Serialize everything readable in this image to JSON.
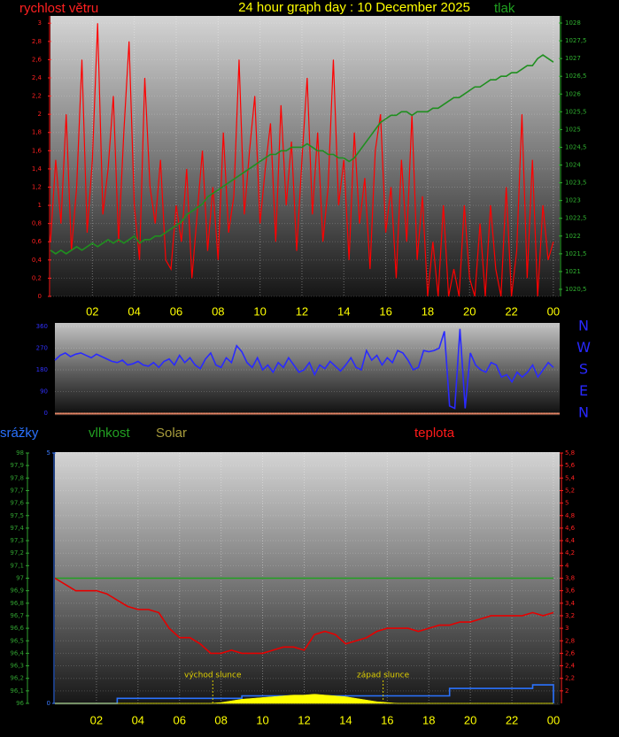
{
  "chart_data": [
    {
      "type": "line",
      "title": "24 hour graph day : 10 December 2025",
      "x": [
        0,
        0.25,
        0.5,
        0.75,
        1,
        1.25,
        1.5,
        1.75,
        2,
        2.25,
        2.5,
        2.75,
        3,
        3.25,
        3.5,
        3.75,
        4,
        4.25,
        4.5,
        4.75,
        5,
        5.25,
        5.5,
        5.75,
        6,
        6.25,
        6.5,
        6.75,
        7,
        7.25,
        7.5,
        7.75,
        8,
        8.25,
        8.5,
        8.75,
        9,
        9.25,
        9.5,
        9.75,
        10,
        10.25,
        10.5,
        10.75,
        11,
        11.25,
        11.5,
        11.75,
        12,
        12.25,
        12.5,
        12.75,
        13,
        13.25,
        13.5,
        13.75,
        14,
        14.25,
        14.5,
        14.75,
        15,
        15.25,
        15.5,
        15.75,
        16,
        16.25,
        16.5,
        16.75,
        17,
        17.25,
        17.5,
        17.75,
        18,
        18.25,
        18.5,
        18.75,
        19,
        19.25,
        19.5,
        19.75,
        20,
        20.25,
        20.5,
        20.75,
        21,
        21.25,
        21.5,
        21.75,
        22,
        22.25,
        22.5,
        22.75,
        23,
        23.25,
        23.5,
        23.75,
        24
      ],
      "series": [
        {
          "name": "rychlost větru",
          "color": "#ff0000",
          "values": [
            0.6,
            1.5,
            0.8,
            2.0,
            0.5,
            1.2,
            2.6,
            0.7,
            1.5,
            3.0,
            0.9,
            1.4,
            2.2,
            0.6,
            1.8,
            2.8,
            1.0,
            0.4,
            2.4,
            1.2,
            0.8,
            1.5,
            0.4,
            0.3,
            1.0,
            0.6,
            1.4,
            0.2,
            0.9,
            1.6,
            0.5,
            1.2,
            0.4,
            1.8,
            0.7,
            1.1,
            2.6,
            0.9,
            1.6,
            2.2,
            0.8,
            1.4,
            1.9,
            0.6,
            2.1,
            1.0,
            1.7,
            0.5,
            1.5,
            2.4,
            0.9,
            1.8,
            0.6,
            1.2,
            2.6,
            1.0,
            1.5,
            0.4,
            1.8,
            0.8,
            1.3,
            0.3,
            1.6,
            2.0,
            0.7,
            1.2,
            0.2,
            1.5,
            0.6,
            2.0,
            0.4,
            1.1,
            0,
            0.6,
            0,
            1.0,
            0,
            0.3,
            0,
            1.0,
            0.2,
            0,
            0.8,
            0,
            1.0,
            0.3,
            0,
            1.2,
            0,
            0.5,
            2.0,
            0.2,
            1.5,
            0,
            1.0,
            0.4,
            0.6
          ]
        },
        {
          "name": "tlak",
          "color": "#1f8f1f",
          "axis": "y2",
          "values": [
            1021.6,
            1021.5,
            1021.6,
            1021.5,
            1021.6,
            1021.7,
            1021.6,
            1021.7,
            1021.8,
            1021.7,
            1021.8,
            1021.9,
            1021.8,
            1021.9,
            1021.8,
            1021.9,
            1022.0,
            1021.8,
            1021.9,
            1021.9,
            1022.0,
            1022.0,
            1022.1,
            1022.2,
            1022.3,
            1022.4,
            1022.6,
            1022.7,
            1022.8,
            1022.9,
            1023.1,
            1023.2,
            1023.3,
            1023.4,
            1023.5,
            1023.6,
            1023.7,
            1023.8,
            1023.9,
            1024.0,
            1024.1,
            1024.2,
            1024.3,
            1024.3,
            1024.4,
            1024.4,
            1024.5,
            1024.5,
            1024.5,
            1024.6,
            1024.5,
            1024.4,
            1024.4,
            1024.3,
            1024.3,
            1024.2,
            1024.2,
            1024.1,
            1024.2,
            1024.4,
            1024.6,
            1024.8,
            1025.0,
            1025.2,
            1025.3,
            1025.4,
            1025.4,
            1025.5,
            1025.5,
            1025.4,
            1025.5,
            1025.5,
            1025.5,
            1025.6,
            1025.6,
            1025.7,
            1025.8,
            1025.9,
            1025.9,
            1026.0,
            1026.1,
            1026.2,
            1026.2,
            1026.3,
            1026.4,
            1026.4,
            1026.5,
            1026.5,
            1026.6,
            1026.6,
            1026.7,
            1026.8,
            1026.8,
            1027.0,
            1027.1,
            1027.0,
            1026.9
          ]
        }
      ],
      "xlim": [
        0,
        24.3
      ],
      "xticks": [
        {
          "value": 2,
          "label": "02"
        },
        {
          "value": 4,
          "label": "04"
        },
        {
          "value": 6,
          "label": "06"
        },
        {
          "value": 8,
          "label": "08"
        },
        10,
        12,
        14,
        16,
        18,
        20,
        22,
        {
          "value": 24,
          "label": "00"
        }
      ],
      "ylim": [
        0,
        3.08
      ],
      "yticks": [
        0,
        {
          "value": 0.2,
          "label": "0,2"
        },
        {
          "value": 0.4,
          "label": "0,4"
        },
        {
          "value": 0.6,
          "label": "0,6"
        },
        {
          "value": 0.8,
          "label": "0,8"
        },
        1,
        {
          "value": 1.2,
          "label": "1,2"
        },
        {
          "value": 1.4,
          "label": "1,4"
        },
        {
          "value": 1.6,
          "label": "1,6"
        },
        {
          "value": 1.8,
          "label": "1,8"
        },
        2,
        {
          "value": 2.2,
          "label": "2,2"
        },
        {
          "value": 2.4,
          "label": "2,4"
        },
        {
          "value": 2.6,
          "label": "2,6"
        },
        {
          "value": 2.8,
          "label": "2,8"
        },
        3
      ],
      "y2lim": [
        1020.3,
        1028.2
      ],
      "y2ticks": [
        {
          "value": 1020.5,
          "label": "1020,5"
        },
        1021,
        {
          "value": 1021.5,
          "label": "1021,5"
        },
        1022,
        {
          "value": 1022.5,
          "label": "1022,5"
        },
        1023,
        {
          "value": 1023.5,
          "label": "1023,5"
        },
        1024,
        {
          "value": 1024.5,
          "label": "1024,5"
        },
        1025,
        {
          "value": 1025.5,
          "label": "1025,5"
        },
        1026,
        {
          "value": 1026.5,
          "label": "1026,5"
        },
        1027,
        {
          "value": 1027.5,
          "label": "1027,5"
        },
        1028
      ],
      "grid": true
    },
    {
      "type": "line",
      "x": [
        0,
        0.25,
        0.5,
        0.75,
        1,
        1.25,
        1.5,
        1.75,
        2,
        2.25,
        2.5,
        2.75,
        3,
        3.25,
        3.5,
        3.75,
        4,
        4.25,
        4.5,
        4.75,
        5,
        5.25,
        5.5,
        5.75,
        6,
        6.25,
        6.5,
        6.75,
        7,
        7.25,
        7.5,
        7.75,
        8,
        8.25,
        8.5,
        8.75,
        9,
        9.25,
        9.5,
        9.75,
        10,
        10.25,
        10.5,
        10.75,
        11,
        11.25,
        11.5,
        11.75,
        12,
        12.25,
        12.5,
        12.75,
        13,
        13.25,
        13.5,
        13.75,
        14,
        14.25,
        14.5,
        14.75,
        15,
        15.25,
        15.5,
        15.75,
        16,
        16.25,
        16.5,
        16.75,
        17,
        17.25,
        17.5,
        17.75,
        18,
        18.25,
        18.5,
        18.75,
        19,
        19.25,
        19.5,
        19.75,
        20,
        20.25,
        20.5,
        20.75,
        21,
        21.25,
        21.5,
        21.75,
        22,
        22.25,
        22.5,
        22.75,
        23,
        23.25,
        23.5,
        23.75,
        24
      ],
      "series": [
        {
          "color": "#2a2aff",
          "values": [
            220,
            240,
            250,
            235,
            245,
            250,
            240,
            230,
            245,
            235,
            225,
            215,
            210,
            220,
            200,
            205,
            215,
            200,
            195,
            210,
            190,
            215,
            225,
            200,
            240,
            210,
            230,
            200,
            185,
            225,
            250,
            200,
            190,
            230,
            210,
            280,
            255,
            210,
            190,
            230,
            180,
            200,
            170,
            210,
            190,
            230,
            200,
            170,
            180,
            210,
            160,
            200,
            185,
            215,
            195,
            175,
            200,
            230,
            190,
            180,
            260,
            220,
            240,
            200,
            230,
            210,
            260,
            250,
            220,
            180,
            190,
            260,
            255,
            260,
            270,
            340,
            30,
            20,
            350,
            20,
            250,
            200,
            180,
            170,
            210,
            200,
            150,
            160,
            130,
            170,
            150,
            170,
            200,
            150,
            180,
            210,
            190
          ]
        }
      ],
      "xlim": [
        0,
        24.3
      ],
      "ylim": [
        0,
        360
      ],
      "yticks": [
        0,
        90,
        180,
        270,
        360
      ],
      "y2lim": [
        0,
        360
      ],
      "y2ticks": [
        {
          "value": 360,
          "label": "N"
        },
        {
          "value": 270,
          "label": "W"
        },
        {
          "value": 180,
          "label": "S"
        },
        {
          "value": 90,
          "label": "E"
        },
        {
          "value": 0,
          "label": "N"
        }
      ],
      "grid": true
    },
    {
      "type": "line",
      "x": [
        0,
        0.5,
        1,
        1.5,
        2,
        2.5,
        3,
        3.5,
        4,
        4.5,
        5,
        5.5,
        6,
        6.5,
        7,
        7.5,
        8,
        8.5,
        9,
        9.5,
        10,
        10.5,
        11,
        11.5,
        12,
        12.5,
        13,
        13.5,
        14,
        14.5,
        15,
        15.5,
        16,
        16.5,
        17,
        17.5,
        18,
        18.5,
        19,
        19.5,
        20,
        20.5,
        21,
        21.5,
        22,
        22.5,
        23,
        23.5,
        24
      ],
      "series": [
        {
          "name": "srážky",
          "color": "#2a72ff",
          "axis": "y3",
          "step": true,
          "values": [
            0,
            0,
            0,
            0,
            0,
            0,
            0.1,
            0.1,
            0.1,
            0.1,
            0.1,
            0.1,
            0.1,
            0.1,
            0.1,
            0.1,
            0.1,
            0.1,
            0.15,
            0.15,
            0.15,
            0.15,
            0.15,
            0.15,
            0.15,
            0.15,
            0.15,
            0.15,
            0.15,
            0.15,
            0.15,
            0.15,
            0.15,
            0.15,
            0.15,
            0.15,
            0.15,
            0.15,
            0.3,
            0.3,
            0.3,
            0.3,
            0.3,
            0.3,
            0.3,
            0.3,
            0.37,
            0.37,
            0
          ]
        },
        {
          "name": "vlhkost",
          "color": "#22a022",
          "values": [
            97,
            97,
            97,
            97,
            97,
            97,
            97,
            97,
            97,
            97,
            97,
            97,
            97,
            97,
            97,
            97,
            97,
            97,
            97,
            97,
            97,
            97,
            97,
            97,
            97,
            97,
            97,
            97,
            97,
            97,
            97,
            97,
            97,
            97,
            97,
            97,
            97,
            97,
            97,
            97,
            97,
            97,
            97,
            97,
            97,
            97,
            97,
            97,
            97
          ]
        },
        {
          "name": "Solar",
          "color": "#ffff00",
          "axis": "y4",
          "area": true,
          "values": [
            0,
            0,
            0,
            0,
            0,
            0,
            0,
            0,
            0,
            0,
            0,
            0,
            0,
            0,
            0,
            0,
            1,
            3,
            5,
            6,
            7,
            8,
            9,
            10,
            10,
            11,
            10,
            9,
            8,
            6,
            4,
            2,
            1,
            0,
            0,
            0,
            0,
            0,
            0,
            0,
            0,
            0,
            0,
            0,
            0,
            0,
            0,
            0,
            0
          ]
        },
        {
          "name": "teplota",
          "color": "#e60000",
          "axis": "y2",
          "values": [
            3.8,
            3.7,
            3.6,
            3.6,
            3.6,
            3.55,
            3.45,
            3.35,
            3.3,
            3.3,
            3.25,
            3.0,
            2.85,
            2.85,
            2.75,
            2.6,
            2.6,
            2.65,
            2.6,
            2.6,
            2.6,
            2.65,
            2.7,
            2.7,
            2.65,
            2.9,
            2.95,
            2.9,
            2.75,
            2.8,
            2.85,
            2.95,
            3.0,
            3.0,
            3.0,
            2.95,
            3.0,
            3.05,
            3.05,
            3.1,
            3.1,
            3.15,
            3.2,
            3.2,
            3.2,
            3.2,
            3.25,
            3.2,
            3.25
          ]
        }
      ],
      "annotations": [
        {
          "text": "východ slunce",
          "x": 7.6
        },
        {
          "text": "západ slunce",
          "x": 15.8
        }
      ],
      "xlim": [
        0,
        24.3
      ],
      "xticks": [
        {
          "value": 2,
          "label": "02"
        },
        {
          "value": 4,
          "label": "04"
        },
        {
          "value": 6,
          "label": "06"
        },
        {
          "value": 8,
          "label": "08"
        },
        10,
        12,
        14,
        16,
        18,
        20,
        22,
        {
          "value": 24,
          "label": "00"
        }
      ],
      "ylim": [
        96,
        98
      ],
      "yticks": [
        96,
        {
          "value": 96.1,
          "label": "96,1"
        },
        {
          "value": 96.2,
          "label": "96,2"
        },
        {
          "value": 96.3,
          "label": "96,3"
        },
        {
          "value": 96.4,
          "label": "96,4"
        },
        {
          "value": 96.5,
          "label": "96,5"
        },
        {
          "value": 96.6,
          "label": "96,6"
        },
        {
          "value": 96.7,
          "label": "96,7"
        },
        {
          "value": 96.8,
          "label": "96,8"
        },
        {
          "value": 96.9,
          "label": "96,9"
        },
        97,
        {
          "value": 97.1,
          "label": "97,1"
        },
        {
          "value": 97.2,
          "label": "97,2"
        },
        {
          "value": 97.3,
          "label": "97,3"
        },
        {
          "value": 97.4,
          "label": "97,4"
        },
        {
          "value": 97.5,
          "label": "97,5"
        },
        {
          "value": 97.6,
          "label": "97,6"
        },
        {
          "value": 97.7,
          "label": "97,7"
        },
        {
          "value": 97.8,
          "label": "97,8"
        },
        {
          "value": 97.9,
          "label": "97,9"
        },
        98
      ],
      "y2lim": [
        1.8,
        5.8
      ],
      "y2ticks": [
        2,
        {
          "value": 2.2,
          "label": "2,2"
        },
        {
          "value": 2.4,
          "label": "2,4"
        },
        {
          "value": 2.6,
          "label": "2,6"
        },
        {
          "value": 2.8,
          "label": "2,8"
        },
        3,
        {
          "value": 3.2,
          "label": "3,2"
        },
        {
          "value": 3.4,
          "label": "3,4"
        },
        {
          "value": 3.6,
          "label": "3,6"
        },
        {
          "value": 3.8,
          "label": "3,8"
        },
        4,
        {
          "value": 4.2,
          "label": "4,2"
        },
        {
          "value": 4.4,
          "label": "4,4"
        },
        {
          "value": 4.6,
          "label": "4,6"
        },
        {
          "value": 4.8,
          "label": "4,8"
        },
        5,
        {
          "value": 5.2,
          "label": "5,2"
        },
        {
          "value": 5.4,
          "label": "5,4"
        },
        {
          "value": 5.6,
          "label": "5,6"
        },
        {
          "value": 5.8,
          "label": "5,8"
        }
      ],
      "y3lim": [
        0,
        5
      ],
      "y3ticks": [
        0,
        5
      ],
      "y4lim": [
        0,
        300
      ],
      "grid": true
    }
  ]
}
